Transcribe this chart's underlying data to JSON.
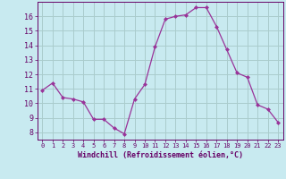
{
  "x": [
    0,
    1,
    2,
    3,
    4,
    5,
    6,
    7,
    8,
    9,
    10,
    11,
    12,
    13,
    14,
    15,
    16,
    17,
    18,
    19,
    20,
    21,
    22,
    23
  ],
  "y": [
    10.9,
    11.4,
    10.4,
    10.3,
    10.1,
    8.9,
    8.9,
    8.3,
    7.9,
    10.3,
    11.3,
    13.9,
    15.8,
    16.0,
    16.1,
    16.6,
    16.6,
    15.3,
    13.7,
    12.1,
    11.8,
    9.9,
    9.6,
    8.7
  ],
  "line_color": "#993399",
  "marker": "D",
  "marker_size": 2.0,
  "bg_color": "#c8eaf0",
  "grid_color": "#aacccc",
  "xlabel": "Windchill (Refroidissement éolien,°C)",
  "xlabel_color": "#660066",
  "tick_color": "#660066",
  "spine_color": "#660066",
  "ylim": [
    7.5,
    17.0
  ],
  "xlim": [
    -0.5,
    23.5
  ],
  "yticks": [
    8,
    9,
    10,
    11,
    12,
    13,
    14,
    15,
    16
  ],
  "xticks": [
    0,
    1,
    2,
    3,
    4,
    5,
    6,
    7,
    8,
    9,
    10,
    11,
    12,
    13,
    14,
    15,
    16,
    17,
    18,
    19,
    20,
    21,
    22,
    23
  ]
}
